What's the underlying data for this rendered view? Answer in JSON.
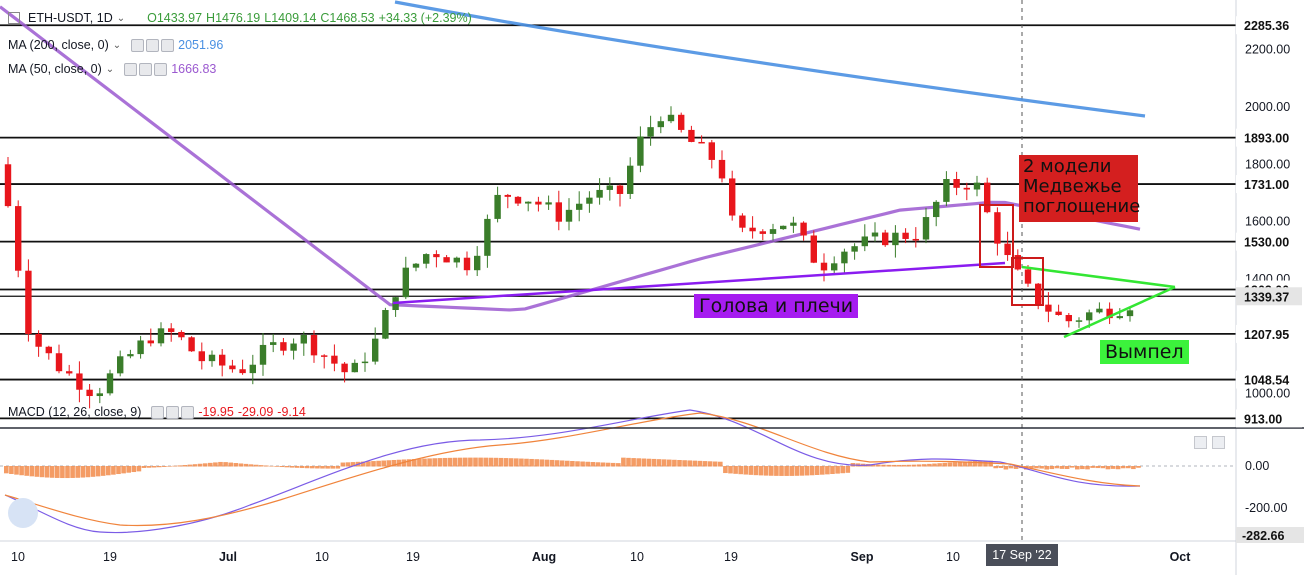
{
  "header": {
    "symbol": "ETH-USDT, 1D",
    "open": "O1433.97",
    "high": "H1476.19",
    "low": "L1409.14",
    "close": "C1468.53",
    "change": "+34.33 (+2.39%)"
  },
  "indicators": {
    "ma200": {
      "label": "MA (200, close, 0)",
      "value": "2051.96",
      "color": "#4a90e2"
    },
    "ma50": {
      "label": "MA (50, close, 0)",
      "value": "1666.83",
      "color": "#9b59d0"
    }
  },
  "macd": {
    "label": "MACD (12, 26, close, 9)",
    "v1": "-19.95",
    "v2": "-29.09",
    "v3": "-9.14"
  },
  "annotations": {
    "note_line1": "2 модели",
    "note_line2": "Медвежье",
    "note_line3": "поглощение",
    "head_shoulders": "Голова и плечи",
    "pennant": "Вымпел"
  },
  "chart_data": [
    {
      "type": "candlestick",
      "title": "ETH-USDT, 1D",
      "price_ticks": [
        "2200.00",
        "2000.00",
        "1800.00",
        "1600.00",
        "1400.00",
        "1200.00",
        "1000.00"
      ],
      "levels": [
        "2285.36",
        "1893.00",
        "1731.00",
        "1530.00",
        "1363.00",
        "1339.37",
        "1207.95",
        "1048.54",
        "913.00"
      ],
      "x_ticks": [
        "10",
        "19",
        "Jul",
        "10",
        "19",
        "Aug",
        "10",
        "19",
        "Sep",
        "10",
        "17 Sep '22",
        "Oct"
      ],
      "crosshair_date": "17 Sep '22",
      "series": [
        {
          "name": "MA (200, close, 0)",
          "last": 2051.96
        },
        {
          "name": "MA (50, close, 0)",
          "last": 1666.83
        }
      ],
      "colors": {
        "up": "#3a7d2a",
        "down": "#e8161c",
        "levels": "#111111",
        "neckline": "#8a1cf0",
        "pennant": "#33e633"
      }
    },
    {
      "type": "line",
      "title": "MACD (12, 26, close, 9)",
      "y_ticks": [
        "0.00",
        "-200.00"
      ],
      "last_value_tag": "-282.66",
      "series": [
        {
          "name": "MACD"
        },
        {
          "name": "Signal"
        },
        {
          "name": "Histogram"
        }
      ]
    }
  ]
}
